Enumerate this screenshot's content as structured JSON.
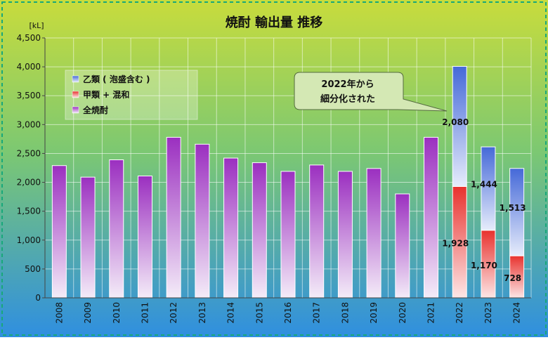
{
  "chart_data": {
    "type": "bar",
    "title": "焼酎 輸出量 推移",
    "unit_label": "[kL]",
    "ylim": [
      0,
      4500
    ],
    "y_ticks": [
      "0",
      "500",
      "1,000",
      "1,500",
      "2,000",
      "2,500",
      "3,000",
      "3,500",
      "4,000",
      "4,500"
    ],
    "categories": [
      "2008",
      "2009",
      "2010",
      "2011",
      "2012",
      "2013",
      "2014",
      "2015",
      "2016",
      "2017",
      "2018",
      "2019",
      "2020",
      "2021",
      "2022",
      "2023",
      "2024"
    ],
    "series": [
      {
        "name": "乙類 ( 泡盛含む )",
        "color": "#4f72d8",
        "values": [
          null,
          null,
          null,
          null,
          null,
          null,
          null,
          null,
          null,
          null,
          null,
          null,
          null,
          null,
          2080,
          1444,
          1513
        ],
        "labels": [
          "",
          "",
          "",
          "",
          "",
          "",
          "",
          "",
          "",
          "",
          "",
          "",
          "",
          "",
          "2,080",
          "1,444",
          "1,513"
        ]
      },
      {
        "name": "甲類 + 混和",
        "color": "#f03c3c",
        "values": [
          null,
          null,
          null,
          null,
          null,
          null,
          null,
          null,
          null,
          null,
          null,
          null,
          null,
          null,
          1928,
          1170,
          728
        ],
        "labels": [
          "",
          "",
          "",
          "",
          "",
          "",
          "",
          "",
          "",
          "",
          "",
          "",
          "",
          "",
          "1,928",
          "1,170",
          "728"
        ]
      },
      {
        "name": "全焼酎",
        "color": "#9b2fc0",
        "values": [
          2290,
          2090,
          2390,
          2110,
          2780,
          2660,
          2420,
          2340,
          2190,
          2300,
          2190,
          2240,
          1800,
          2780,
          null,
          null,
          null
        ]
      }
    ],
    "legend_position": "top-left",
    "grid": true,
    "annotation": {
      "lines": [
        "2022年から",
        "細分化された"
      ]
    }
  }
}
